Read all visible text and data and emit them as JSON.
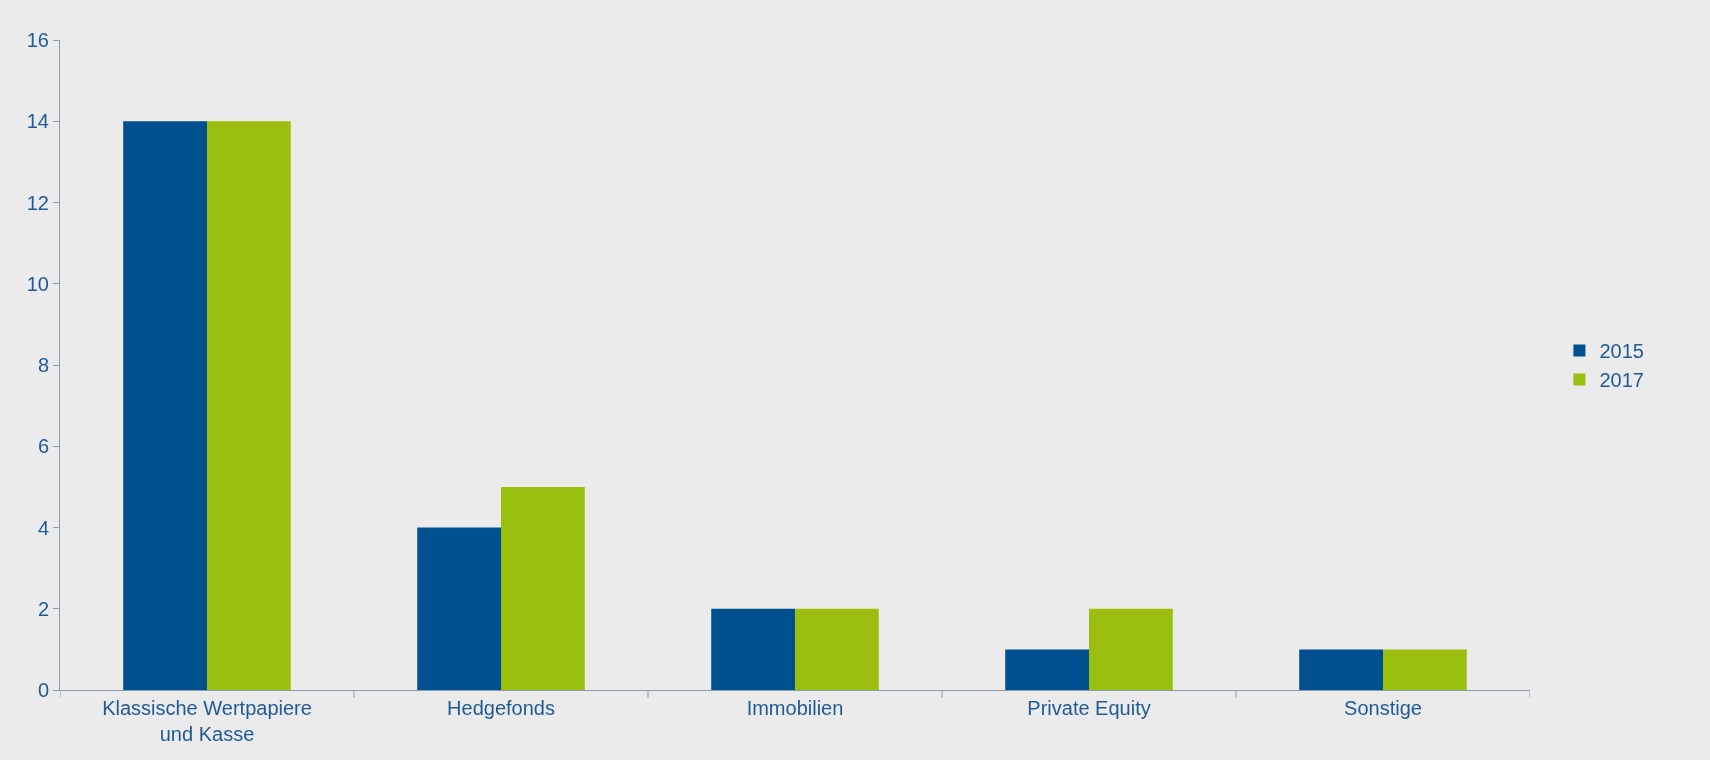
{
  "chart_data": {
    "type": "bar",
    "categories": [
      "Klassische Wertpapiere und Kasse",
      "Hedgefonds",
      "Immobilien",
      "Private Equity",
      "Sonstige"
    ],
    "series": [
      {
        "name": "2015",
        "color": "#00508f",
        "values": [
          14,
          4,
          2,
          1,
          1
        ]
      },
      {
        "name": "2017",
        "color": "#9bbf0f",
        "values": [
          14,
          5,
          2,
          2,
          1
        ]
      }
    ],
    "ylim": [
      0,
      16
    ],
    "yticks": [
      0,
      2,
      4,
      6,
      8,
      10,
      12,
      14,
      16
    ],
    "grid": false,
    "legend": "right"
  }
}
